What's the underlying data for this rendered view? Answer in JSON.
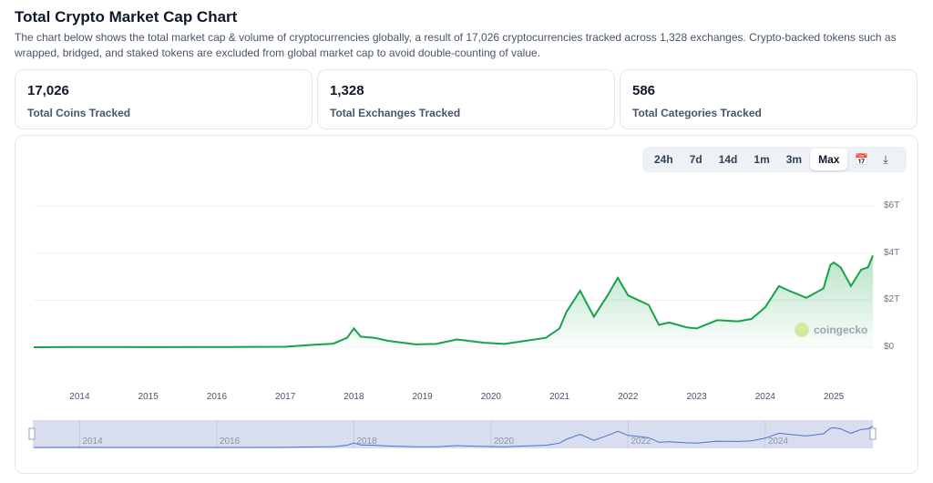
{
  "title": "Total Crypto Market Cap Chart",
  "description": "The chart below shows the total market cap & volume of cryptocurrencies globally, a result of 17,026 cryptocurrencies tracked across 1,328 exchanges. Crypto-backed tokens such as wrapped, bridged, and staked tokens are excluded from global market cap to avoid double-counting of value.",
  "stats": [
    {
      "value": "17,026",
      "label": "Total Coins Tracked"
    },
    {
      "value": "1,328",
      "label": "Total Exchanges Tracked"
    },
    {
      "value": "586",
      "label": "Total Categories Tracked"
    }
  ],
  "ranges": [
    "24h",
    "7d",
    "14d",
    "1m",
    "3m",
    "Max"
  ],
  "active_range": "Max",
  "watermark": "coingecko",
  "colors": {
    "line": "#16a34a",
    "navigator": "#4f6fd0"
  },
  "chart_data": {
    "type": "area",
    "y_ticks": [
      "$0",
      "$2T",
      "$4T",
      "$6T"
    ],
    "ylim": [
      0,
      6
    ],
    "yunit": "trillion USD",
    "x_ticks": [
      "2014",
      "2015",
      "2016",
      "2017",
      "2018",
      "2019",
      "2020",
      "2021",
      "2022",
      "2023",
      "2024",
      "2025"
    ],
    "navigator_ticks": [
      "2014",
      "2016",
      "2018",
      "2020",
      "2022",
      "2024"
    ],
    "xlim": [
      2013.33,
      2025.57
    ],
    "series": [
      {
        "name": "Market Cap",
        "x": [
          2013.33,
          2014.0,
          2014.5,
          2015.0,
          2016.0,
          2017.0,
          2017.4,
          2017.7,
          2017.9,
          2018.0,
          2018.1,
          2018.3,
          2018.5,
          2018.9,
          2019.2,
          2019.5,
          2019.9,
          2020.2,
          2020.5,
          2020.8,
          2021.0,
          2021.1,
          2021.3,
          2021.5,
          2021.7,
          2021.85,
          2022.0,
          2022.3,
          2022.45,
          2022.6,
          2022.85,
          2023.0,
          2023.3,
          2023.6,
          2023.8,
          2024.0,
          2024.2,
          2024.35,
          2024.6,
          2024.85,
          2024.95,
          2025.0,
          2025.1,
          2025.25,
          2025.4,
          2025.5,
          2025.57
        ],
        "y": [
          0.0015,
          0.012,
          0.008,
          0.005,
          0.007,
          0.018,
          0.1,
          0.15,
          0.4,
          0.8,
          0.45,
          0.4,
          0.27,
          0.12,
          0.14,
          0.33,
          0.19,
          0.14,
          0.27,
          0.4,
          0.8,
          1.5,
          2.4,
          1.3,
          2.2,
          2.95,
          2.2,
          1.8,
          0.95,
          1.05,
          0.85,
          0.8,
          1.15,
          1.1,
          1.2,
          1.7,
          2.6,
          2.4,
          2.1,
          2.5,
          3.5,
          3.6,
          3.4,
          2.6,
          3.3,
          3.4,
          3.9
        ]
      }
    ]
  }
}
